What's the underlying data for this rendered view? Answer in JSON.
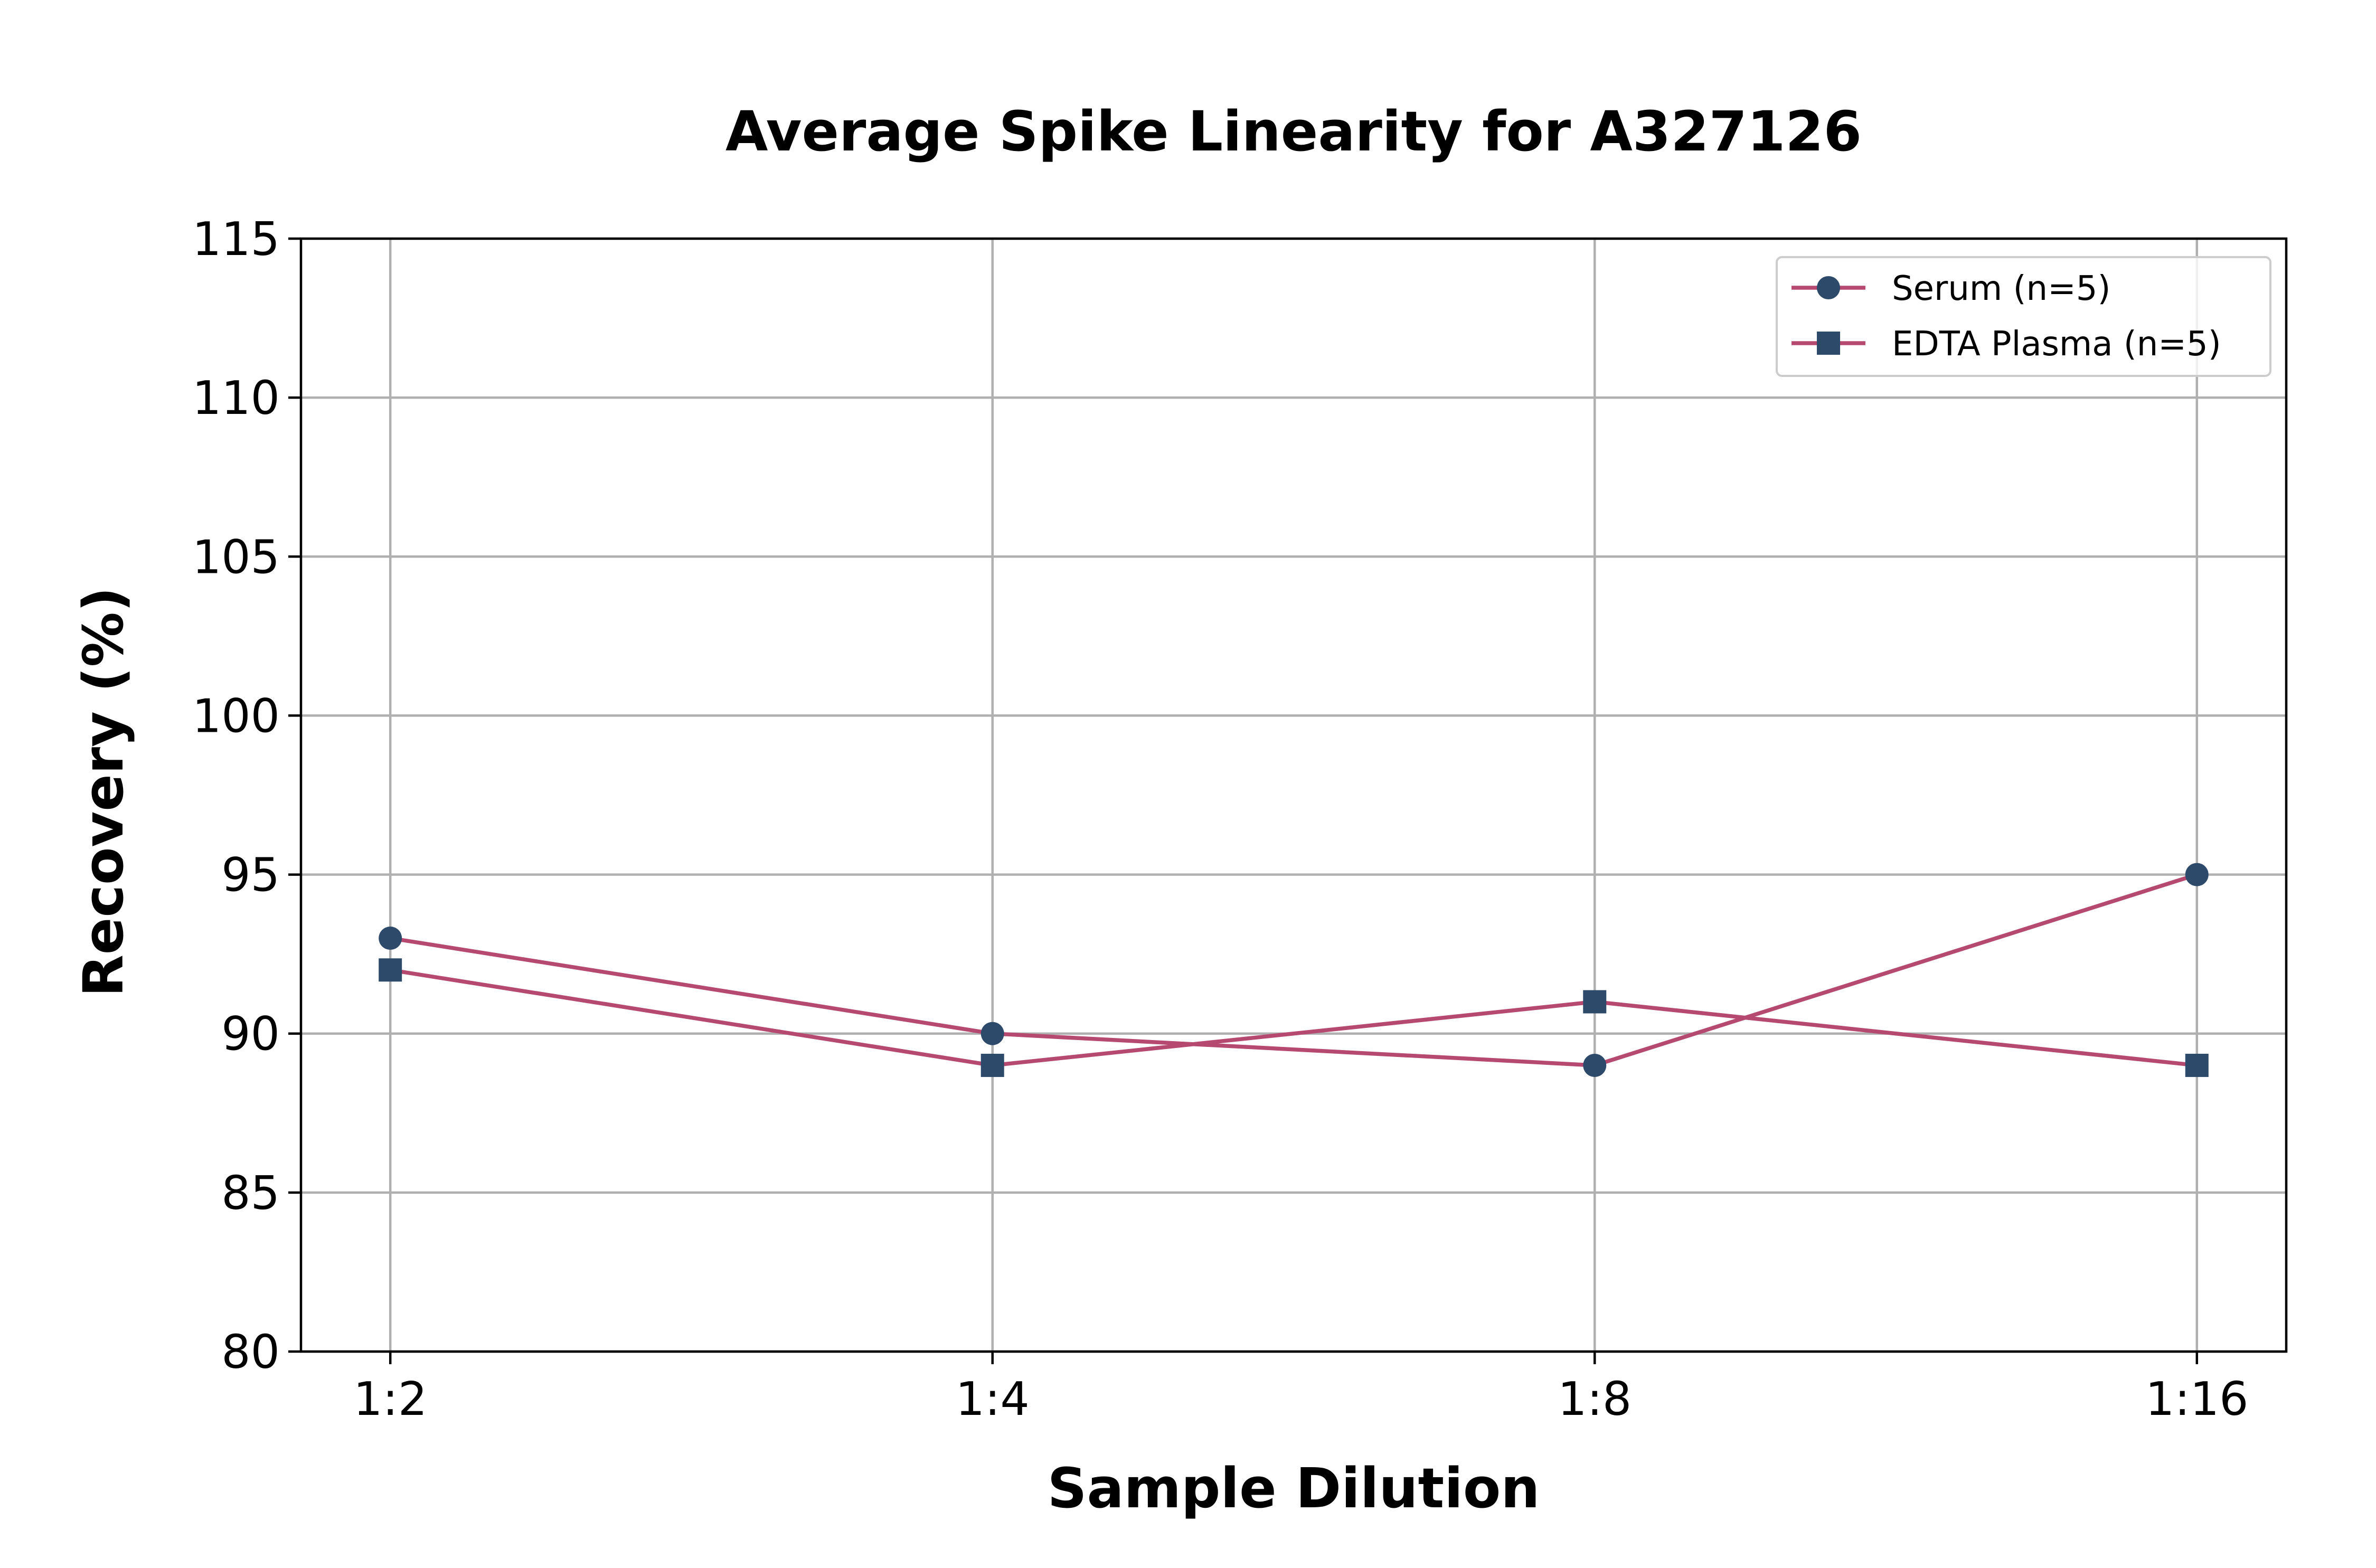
{
  "chart_data": {
    "type": "line",
    "title": "Average Spike Linearity for A327126",
    "xlabel": "Sample Dilution",
    "ylabel": "Recovery (%)",
    "categories": [
      "1:2",
      "1:4",
      "1:8",
      "1:16"
    ],
    "ylim": [
      80,
      115
    ],
    "yticks": [
      80,
      85,
      90,
      95,
      100,
      105,
      110,
      115
    ],
    "grid": true,
    "legend_position": "top-right",
    "series": [
      {
        "name": "Serum (n=5)",
        "values": [
          93,
          90,
          89,
          95
        ],
        "marker": "circle",
        "line_color": "#b5496f",
        "marker_color": "#2e4a6b"
      },
      {
        "name": "EDTA Plasma (n=5)",
        "values": [
          92,
          89,
          91,
          89
        ],
        "marker": "square",
        "line_color": "#b5496f",
        "marker_color": "#2e4a6b"
      }
    ]
  }
}
